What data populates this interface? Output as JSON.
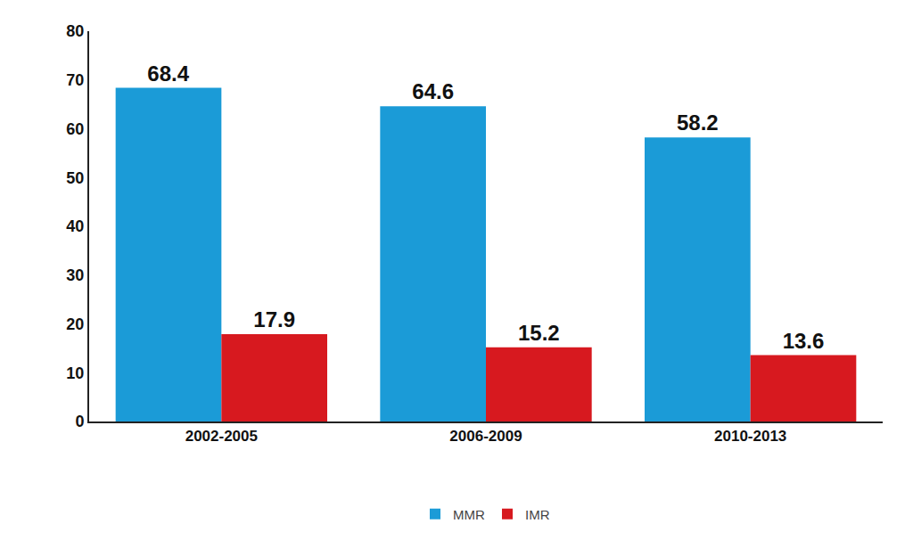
{
  "chart_data": {
    "type": "bar",
    "categories": [
      "2002-2005",
      "2006-2009",
      "2010-2013"
    ],
    "series": [
      {
        "name": "MMR",
        "color": "#1b9bd7",
        "values": [
          68.4,
          64.6,
          58.2
        ]
      },
      {
        "name": "IMR",
        "color": "#d7191f",
        "values": [
          17.9,
          15.2,
          13.6
        ]
      }
    ],
    "ylim": [
      0,
      80
    ],
    "yticks": [
      0,
      10,
      20,
      30,
      40,
      50,
      60,
      70,
      80
    ],
    "grid": false,
    "data_labels": true,
    "legend": "bottom"
  }
}
